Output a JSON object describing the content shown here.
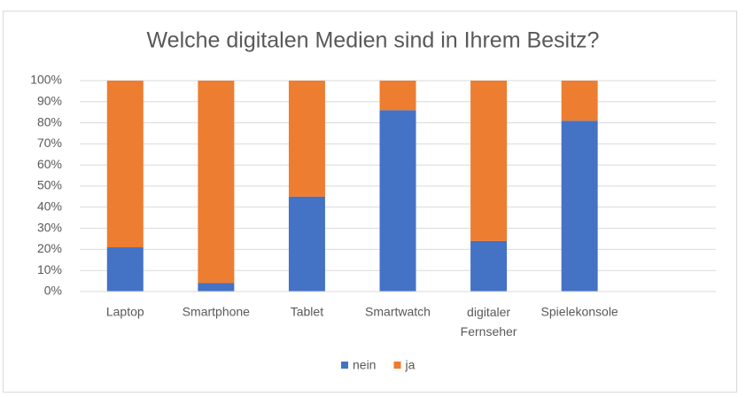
{
  "chart_data": {
    "type": "stacked-bar",
    "title": "Welche digitalen Medien sind in Ihrem Besitz?",
    "categories": [
      "Laptop",
      "Smartphone",
      "Tablet",
      "Smartwatch",
      "digitaler Fernseher",
      "Spielekonsole",
      null
    ],
    "series": [
      {
        "name": "nein",
        "color": "#4472c4",
        "values": [
          21,
          4,
          45,
          86,
          24,
          81,
          null
        ]
      },
      {
        "name": "ja",
        "color": "#ed7d31",
        "values": [
          79,
          96,
          55,
          14,
          76,
          19,
          null
        ]
      }
    ],
    "ylim": [
      0,
      100
    ],
    "yticks": [
      {
        "value": 0,
        "label": "0%"
      },
      {
        "value": 10,
        "label": "10%"
      },
      {
        "value": 20,
        "label": "20%"
      },
      {
        "value": 30,
        "label": "30%"
      },
      {
        "value": 40,
        "label": "40%"
      },
      {
        "value": 50,
        "label": "50%"
      },
      {
        "value": 60,
        "label": "60%"
      },
      {
        "value": 70,
        "label": "70%"
      },
      {
        "value": 80,
        "label": "80%"
      },
      {
        "value": 90,
        "label": "90%"
      },
      {
        "value": 100,
        "label": "100%"
      }
    ],
    "grid": true,
    "legend": "bottom"
  }
}
